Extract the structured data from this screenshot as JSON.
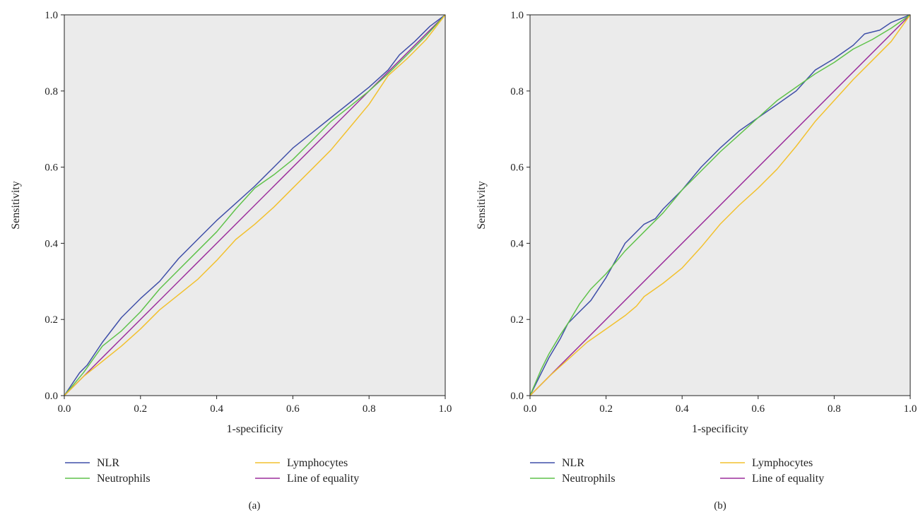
{
  "colors": {
    "plot_background": "#ebebeb",
    "NLR": "#3f4fa8",
    "Neutrophils": "#5fc24a",
    "Lymphocytes": "#f2c12e",
    "Line of equality": "#9b2d9b"
  },
  "chart_data": [
    {
      "type": "line",
      "panel_label": "(a)",
      "xlabel": "1-specificity",
      "ylabel": "Sensitivity",
      "xlim": [
        0,
        1
      ],
      "ylim": [
        0,
        1
      ],
      "x_ticks": [
        "0.0",
        "0.2",
        "0.4",
        "0.6",
        "0.8",
        "1.0"
      ],
      "y_ticks": [
        "0.0",
        "0.2",
        "0.4",
        "0.6",
        "0.8",
        "1.0"
      ],
      "grid": false,
      "legend": {
        "placement": "bottom"
      },
      "series": [
        {
          "name": "NLR",
          "points": [
            [
              0,
              0
            ],
            [
              0.04,
              0.06
            ],
            [
              0.06,
              0.08
            ],
            [
              0.1,
              0.14
            ],
            [
              0.15,
              0.205
            ],
            [
              0.2,
              0.255
            ],
            [
              0.25,
              0.3
            ],
            [
              0.3,
              0.36
            ],
            [
              0.35,
              0.41
            ],
            [
              0.4,
              0.46
            ],
            [
              0.45,
              0.505
            ],
            [
              0.5,
              0.55
            ],
            [
              0.55,
              0.6
            ],
            [
              0.6,
              0.65
            ],
            [
              0.65,
              0.69
            ],
            [
              0.7,
              0.73
            ],
            [
              0.75,
              0.77
            ],
            [
              0.8,
              0.81
            ],
            [
              0.85,
              0.855
            ],
            [
              0.88,
              0.895
            ],
            [
              0.92,
              0.93
            ],
            [
              0.96,
              0.97
            ],
            [
              1,
              1
            ]
          ]
        },
        {
          "name": "Neutrophils",
          "points": [
            [
              0,
              0
            ],
            [
              0.05,
              0.06
            ],
            [
              0.1,
              0.13
            ],
            [
              0.15,
              0.17
            ],
            [
              0.2,
              0.22
            ],
            [
              0.25,
              0.28
            ],
            [
              0.3,
              0.33
            ],
            [
              0.35,
              0.38
            ],
            [
              0.4,
              0.43
            ],
            [
              0.45,
              0.49
            ],
            [
              0.5,
              0.545
            ],
            [
              0.55,
              0.58
            ],
            [
              0.6,
              0.62
            ],
            [
              0.65,
              0.67
            ],
            [
              0.7,
              0.72
            ],
            [
              0.75,
              0.76
            ],
            [
              0.8,
              0.8
            ],
            [
              0.85,
              0.845
            ],
            [
              0.9,
              0.895
            ],
            [
              0.95,
              0.945
            ],
            [
              1,
              1
            ]
          ]
        },
        {
          "name": "Lymphocytes",
          "points": [
            [
              0,
              0
            ],
            [
              0.05,
              0.05
            ],
            [
              0.1,
              0.09
            ],
            [
              0.15,
              0.13
            ],
            [
              0.2,
              0.175
            ],
            [
              0.25,
              0.225
            ],
            [
              0.3,
              0.265
            ],
            [
              0.35,
              0.305
            ],
            [
              0.4,
              0.355
            ],
            [
              0.45,
              0.41
            ],
            [
              0.5,
              0.45
            ],
            [
              0.55,
              0.495
            ],
            [
              0.6,
              0.545
            ],
            [
              0.65,
              0.595
            ],
            [
              0.7,
              0.645
            ],
            [
              0.75,
              0.705
            ],
            [
              0.8,
              0.765
            ],
            [
              0.85,
              0.84
            ],
            [
              0.9,
              0.885
            ],
            [
              0.95,
              0.935
            ],
            [
              1,
              1
            ]
          ]
        },
        {
          "name": "Line of equality",
          "points": [
            [
              0,
              0
            ],
            [
              1,
              1
            ]
          ]
        }
      ]
    },
    {
      "type": "line",
      "panel_label": "(b)",
      "xlabel": "1-specificity",
      "ylabel": "Sensitivity",
      "xlim": [
        0,
        1
      ],
      "ylim": [
        0,
        1
      ],
      "x_ticks": [
        "0.0",
        "0.2",
        "0.4",
        "0.6",
        "0.8",
        "1.0"
      ],
      "y_ticks": [
        "0.0",
        "0.2",
        "0.4",
        "0.6",
        "0.8",
        "1.0"
      ],
      "grid": false,
      "legend": {
        "placement": "bottom"
      },
      "series": [
        {
          "name": "NLR",
          "points": [
            [
              0,
              0
            ],
            [
              0.03,
              0.06
            ],
            [
              0.05,
              0.1
            ],
            [
              0.08,
              0.15
            ],
            [
              0.1,
              0.19
            ],
            [
              0.13,
              0.22
            ],
            [
              0.16,
              0.25
            ],
            [
              0.2,
              0.31
            ],
            [
              0.25,
              0.4
            ],
            [
              0.3,
              0.45
            ],
            [
              0.33,
              0.465
            ],
            [
              0.35,
              0.49
            ],
            [
              0.4,
              0.54
            ],
            [
              0.45,
              0.6
            ],
            [
              0.5,
              0.65
            ],
            [
              0.55,
              0.695
            ],
            [
              0.6,
              0.73
            ],
            [
              0.65,
              0.765
            ],
            [
              0.7,
              0.8
            ],
            [
              0.75,
              0.855
            ],
            [
              0.8,
              0.885
            ],
            [
              0.85,
              0.92
            ],
            [
              0.88,
              0.95
            ],
            [
              0.92,
              0.96
            ],
            [
              0.95,
              0.98
            ],
            [
              1,
              1
            ]
          ]
        },
        {
          "name": "Neutrophils",
          "points": [
            [
              0,
              0
            ],
            [
              0.03,
              0.07
            ],
            [
              0.05,
              0.11
            ],
            [
              0.08,
              0.16
            ],
            [
              0.1,
              0.19
            ],
            [
              0.13,
              0.24
            ],
            [
              0.16,
              0.28
            ],
            [
              0.2,
              0.32
            ],
            [
              0.25,
              0.38
            ],
            [
              0.3,
              0.43
            ],
            [
              0.35,
              0.48
            ],
            [
              0.4,
              0.54
            ],
            [
              0.45,
              0.59
            ],
            [
              0.5,
              0.64
            ],
            [
              0.55,
              0.685
            ],
            [
              0.6,
              0.73
            ],
            [
              0.65,
              0.775
            ],
            [
              0.7,
              0.81
            ],
            [
              0.75,
              0.845
            ],
            [
              0.8,
              0.875
            ],
            [
              0.85,
              0.91
            ],
            [
              0.9,
              0.935
            ],
            [
              0.95,
              0.965
            ],
            [
              1,
              1
            ]
          ]
        },
        {
          "name": "Lymphocytes",
          "points": [
            [
              0,
              0
            ],
            [
              0.05,
              0.05
            ],
            [
              0.1,
              0.095
            ],
            [
              0.15,
              0.14
            ],
            [
              0.2,
              0.175
            ],
            [
              0.25,
              0.21
            ],
            [
              0.28,
              0.235
            ],
            [
              0.3,
              0.26
            ],
            [
              0.35,
              0.295
            ],
            [
              0.4,
              0.335
            ],
            [
              0.45,
              0.39
            ],
            [
              0.5,
              0.45
            ],
            [
              0.55,
              0.5
            ],
            [
              0.6,
              0.545
            ],
            [
              0.65,
              0.595
            ],
            [
              0.7,
              0.655
            ],
            [
              0.75,
              0.72
            ],
            [
              0.8,
              0.775
            ],
            [
              0.85,
              0.83
            ],
            [
              0.9,
              0.88
            ],
            [
              0.95,
              0.93
            ],
            [
              1,
              1
            ]
          ]
        },
        {
          "name": "Line of equality",
          "points": [
            [
              0,
              0
            ],
            [
              1,
              1
            ]
          ]
        }
      ]
    }
  ]
}
